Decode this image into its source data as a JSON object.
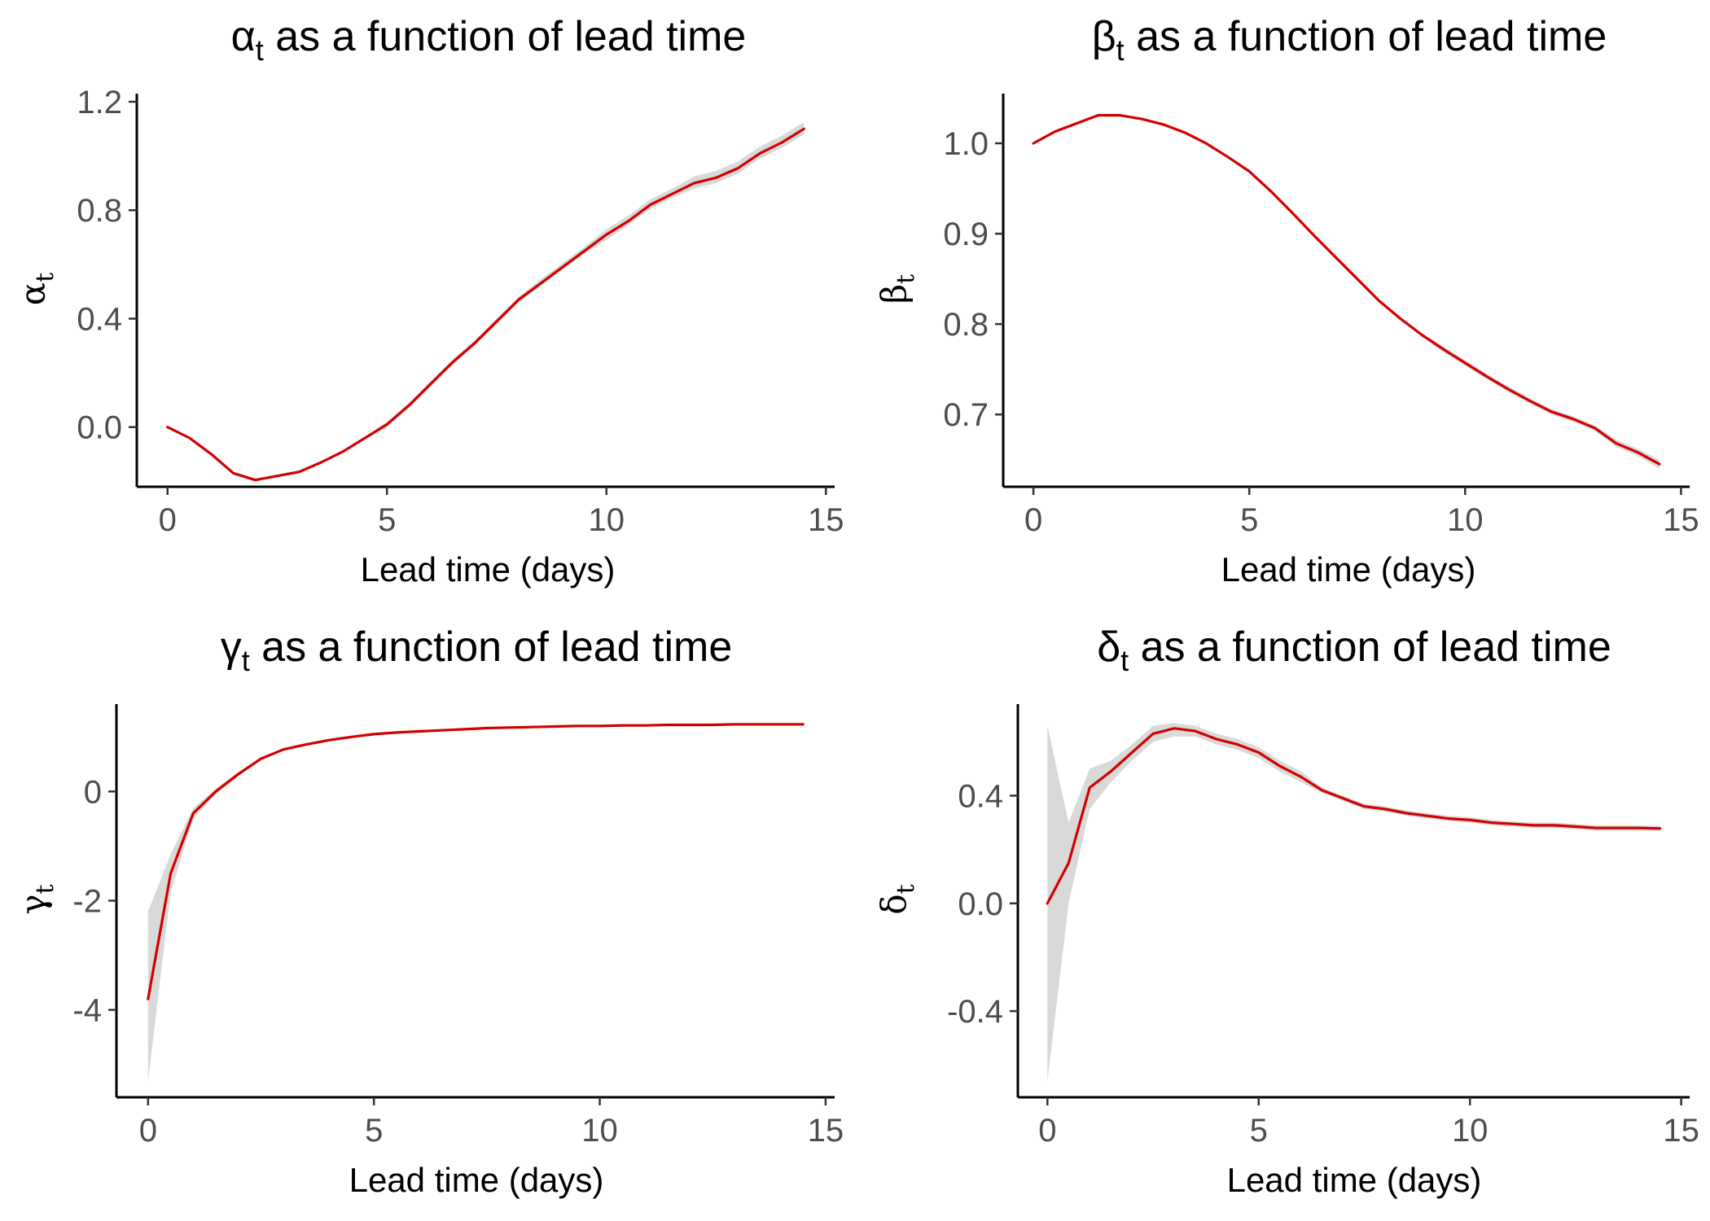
{
  "colors": {
    "line": "#d40000",
    "band": "#d9d9d9",
    "axis": "#000000",
    "tick_text": "#4d4d4d"
  },
  "chart_data": [
    {
      "type": "line",
      "title_symbol": "α",
      "title_sub": "t",
      "title_rest": " as a function of lead time",
      "xlabel": "Lead time (days)",
      "ylabel_symbol": "α",
      "ylabel_sub": "t",
      "xlim": [
        -0.7,
        15.2
      ],
      "ylim": [
        -0.22,
        1.23
      ],
      "xticks": [
        0,
        5,
        10,
        15
      ],
      "yticks": [
        0,
        0.4,
        0.8,
        1.2
      ],
      "ytick_labels": [
        "0.0",
        "0.4",
        "0.8",
        "1.2"
      ],
      "grid": false,
      "x": [
        0,
        0.5,
        1,
        1.5,
        2,
        2.5,
        3,
        3.5,
        4,
        4.5,
        5,
        5.5,
        6,
        6.5,
        7,
        7.5,
        8,
        8.5,
        9,
        9.5,
        10,
        10.5,
        11,
        11.5,
        12,
        12.5,
        13,
        13.5,
        14,
        14.5
      ],
      "y": [
        0.0,
        -0.04,
        -0.1,
        -0.17,
        -0.195,
        -0.18,
        -0.165,
        -0.13,
        -0.09,
        -0.04,
        0.01,
        0.08,
        0.16,
        0.24,
        0.31,
        0.39,
        0.47,
        0.53,
        0.59,
        0.65,
        0.71,
        0.76,
        0.82,
        0.86,
        0.9,
        0.92,
        0.955,
        1.01,
        1.05,
        1.1
      ],
      "lower": [
        0.0,
        -0.04,
        -0.105,
        -0.175,
        -0.2,
        -0.185,
        -0.17,
        -0.135,
        -0.095,
        -0.045,
        0.0,
        0.07,
        0.15,
        0.23,
        0.3,
        0.38,
        0.46,
        0.52,
        0.58,
        0.64,
        0.69,
        0.745,
        0.805,
        0.845,
        0.88,
        0.9,
        0.935,
        0.99,
        1.03,
        1.08
      ],
      "upper": [
        0.0,
        -0.04,
        -0.095,
        -0.165,
        -0.19,
        -0.175,
        -0.16,
        -0.125,
        -0.085,
        -0.035,
        0.02,
        0.09,
        0.17,
        0.25,
        0.32,
        0.4,
        0.48,
        0.545,
        0.605,
        0.665,
        0.73,
        0.78,
        0.84,
        0.88,
        0.925,
        0.945,
        0.98,
        1.035,
        1.075,
        1.125
      ]
    },
    {
      "type": "line",
      "title_symbol": "β",
      "title_sub": "t",
      "title_rest": " as a function of lead time",
      "xlabel": "Lead time (days)",
      "ylabel_symbol": "β",
      "ylabel_sub": "t",
      "xlim": [
        -0.7,
        15.2
      ],
      "ylim": [
        0.62,
        1.055
      ],
      "xticks": [
        0,
        5,
        10,
        15
      ],
      "yticks": [
        0.7,
        0.8,
        0.9,
        1.0
      ],
      "ytick_labels": [
        "0.7",
        "0.8",
        "0.9",
        "1.0"
      ],
      "grid": false,
      "x": [
        0,
        0.5,
        1,
        1.5,
        2,
        2.5,
        3,
        3.5,
        4,
        4.5,
        5,
        5.5,
        6,
        6.5,
        7,
        7.5,
        8,
        8.5,
        9,
        9.5,
        10,
        10.5,
        11,
        11.5,
        12,
        12.5,
        13,
        13.5,
        14,
        14.5
      ],
      "y": [
        1.0,
        1.013,
        1.022,
        1.031,
        1.031,
        1.027,
        1.021,
        1.012,
        1.0,
        0.985,
        0.969,
        0.947,
        0.923,
        0.898,
        0.874,
        0.85,
        0.826,
        0.806,
        0.788,
        0.772,
        0.757,
        0.742,
        0.728,
        0.715,
        0.703,
        0.695,
        0.685,
        0.668,
        0.658,
        0.645
      ],
      "lower": [
        1.0,
        1.012,
        1.021,
        1.03,
        1.03,
        1.026,
        1.02,
        1.011,
        0.999,
        0.984,
        0.967,
        0.945,
        0.921,
        0.896,
        0.872,
        0.848,
        0.824,
        0.804,
        0.786,
        0.769,
        0.754,
        0.739,
        0.725,
        0.712,
        0.7,
        0.692,
        0.682,
        0.664,
        0.654,
        0.64
      ],
      "upper": [
        1.0,
        1.014,
        1.023,
        1.032,
        1.032,
        1.028,
        1.022,
        1.013,
        1.001,
        0.986,
        0.971,
        0.949,
        0.925,
        0.9,
        0.876,
        0.852,
        0.828,
        0.808,
        0.79,
        0.775,
        0.76,
        0.745,
        0.731,
        0.718,
        0.706,
        0.698,
        0.688,
        0.672,
        0.662,
        0.65
      ]
    },
    {
      "type": "line",
      "title_symbol": "γ",
      "title_sub": "t",
      "title_rest": " as a function of lead time",
      "xlabel": "Lead time (days)",
      "ylabel_symbol": "γ",
      "ylabel_sub": "t",
      "xlim": [
        -0.7,
        15.2
      ],
      "ylim": [
        -5.6,
        1.6
      ],
      "xticks": [
        0,
        5,
        10,
        15
      ],
      "yticks": [
        -4,
        -2,
        0
      ],
      "ytick_labels": [
        "-4",
        "-2",
        "0"
      ],
      "grid": false,
      "x": [
        0,
        0.5,
        1,
        1.5,
        2,
        2.5,
        3,
        3.5,
        4,
        4.5,
        5,
        5.5,
        6,
        6.5,
        7,
        7.5,
        8,
        8.5,
        9,
        9.5,
        10,
        10.5,
        11,
        11.5,
        12,
        12.5,
        13,
        13.5,
        14,
        14.5
      ],
      "y": [
        -3.8,
        -1.5,
        -0.4,
        0.0,
        0.32,
        0.6,
        0.77,
        0.86,
        0.94,
        1.0,
        1.05,
        1.08,
        1.1,
        1.12,
        1.14,
        1.16,
        1.17,
        1.18,
        1.19,
        1.2,
        1.2,
        1.21,
        1.21,
        1.22,
        1.22,
        1.22,
        1.23,
        1.23,
        1.23,
        1.23
      ],
      "lower": [
        -5.3,
        -1.85,
        -0.5,
        -0.05,
        0.28,
        0.57,
        0.75,
        0.84,
        0.92,
        0.98,
        1.03,
        1.06,
        1.08,
        1.1,
        1.12,
        1.14,
        1.15,
        1.16,
        1.17,
        1.18,
        1.18,
        1.19,
        1.19,
        1.2,
        1.2,
        1.2,
        1.21,
        1.21,
        1.21,
        1.21
      ],
      "upper": [
        -2.2,
        -1.15,
        -0.3,
        0.05,
        0.36,
        0.63,
        0.79,
        0.88,
        0.96,
        1.02,
        1.07,
        1.1,
        1.12,
        1.14,
        1.16,
        1.18,
        1.19,
        1.2,
        1.21,
        1.22,
        1.22,
        1.23,
        1.23,
        1.24,
        1.24,
        1.24,
        1.25,
        1.25,
        1.25,
        1.25
      ]
    },
    {
      "type": "line",
      "title_symbol": "δ",
      "title_sub": "t",
      "title_rest": " as a function of lead time",
      "xlabel": "Lead time (days)",
      "ylabel_symbol": "δ",
      "ylabel_sub": "t",
      "xlim": [
        -0.7,
        15.2
      ],
      "ylim": [
        -0.72,
        0.74
      ],
      "xticks": [
        0,
        5,
        10,
        15
      ],
      "yticks": [
        -0.4,
        0.0,
        0.4
      ],
      "ytick_labels": [
        "-0.4",
        "0.0",
        "0.4"
      ],
      "grid": false,
      "x": [
        0,
        0.5,
        1,
        1.5,
        2,
        2.5,
        3,
        3.5,
        4,
        4.5,
        5,
        5.5,
        6,
        6.5,
        7,
        7.5,
        8,
        8.5,
        9,
        9.5,
        10,
        10.5,
        11,
        11.5,
        12,
        12.5,
        13,
        13.5,
        14,
        14.5
      ],
      "y": [
        0.0,
        0.15,
        0.43,
        0.49,
        0.56,
        0.63,
        0.65,
        0.64,
        0.61,
        0.59,
        0.56,
        0.51,
        0.47,
        0.42,
        0.39,
        0.36,
        0.35,
        0.335,
        0.325,
        0.315,
        0.31,
        0.3,
        0.295,
        0.29,
        0.29,
        0.285,
        0.28,
        0.28,
        0.28,
        0.278
      ],
      "lower": [
        -0.66,
        0.0,
        0.35,
        0.45,
        0.53,
        0.6,
        0.62,
        0.62,
        0.59,
        0.57,
        0.54,
        0.49,
        0.45,
        0.41,
        0.38,
        0.35,
        0.34,
        0.325,
        0.315,
        0.305,
        0.3,
        0.29,
        0.285,
        0.28,
        0.28,
        0.275,
        0.27,
        0.27,
        0.27,
        0.268
      ],
      "upper": [
        0.66,
        0.3,
        0.5,
        0.53,
        0.59,
        0.66,
        0.67,
        0.66,
        0.63,
        0.61,
        0.58,
        0.53,
        0.49,
        0.43,
        0.4,
        0.37,
        0.36,
        0.345,
        0.335,
        0.325,
        0.32,
        0.31,
        0.305,
        0.3,
        0.3,
        0.295,
        0.29,
        0.29,
        0.29,
        0.288
      ]
    }
  ]
}
